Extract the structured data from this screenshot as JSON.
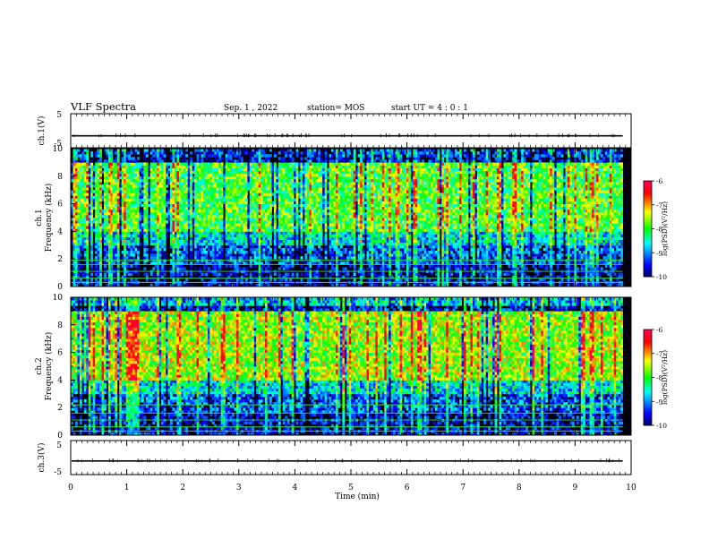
{
  "header": {
    "title": "VLF Spectra",
    "date": "Sep. 1 , 2022",
    "station": "station= MOS",
    "start_ut": "start UT = 4 : 0 : 1"
  },
  "chart_data": [
    {
      "type": "line",
      "id": "ch1-voltage",
      "ylabel": "ch.1(V)",
      "ylim": [
        -5,
        5
      ],
      "yticks": [
        5,
        -5
      ],
      "xlim": [
        0,
        10
      ],
      "baseline_volts": -1.5,
      "data_end_min": 9.85
    },
    {
      "type": "heatmap",
      "id": "ch1-spectrogram",
      "ylabel": "ch.1\nFrequency (kHz)",
      "ylabel_lines": [
        "ch.1",
        "Frequency (kHz)"
      ],
      "ylim": [
        0,
        10
      ],
      "yticks": [
        0,
        2,
        4,
        6,
        8,
        10
      ],
      "xlim": [
        0,
        10
      ],
      "data_end_min": 9.85,
      "peak_band_khz": [
        4,
        9
      ],
      "narrowband_lines_khz": [
        0.3,
        0.6,
        1.1,
        1.6,
        1.9
      ],
      "colorbar": {
        "label": "log(PSD)(V²/Hz)",
        "ticks": [
          -6,
          -7,
          -8,
          -9,
          -10
        ],
        "range": [
          -10,
          -6
        ]
      }
    },
    {
      "type": "heatmap",
      "id": "ch2-spectrogram",
      "ylabel": "ch.2\nFrequency (kHz)",
      "ylabel_lines": [
        "ch.2",
        "Frequency (kHz)"
      ],
      "ylim": [
        0,
        10
      ],
      "yticks": [
        0,
        2,
        4,
        6,
        8,
        10
      ],
      "xlim": [
        0,
        10
      ],
      "data_end_min": 9.85,
      "peak_band_khz": [
        4,
        9
      ],
      "narrowband_lines_khz": [
        0.3,
        0.6,
        1.1,
        1.6,
        2.2
      ],
      "colorbar": {
        "label": "log(PSD)(V²/Hz)",
        "ticks": [
          -6,
          -7,
          -8,
          -9,
          -10
        ],
        "range": [
          -10,
          -6
        ]
      }
    },
    {
      "type": "line",
      "id": "ch3-voltage",
      "ylabel": "ch.3(V)",
      "ylim": [
        -5,
        5
      ],
      "yticks": [
        5,
        -5
      ],
      "xlim": [
        0,
        10
      ],
      "baseline_volts": -1.0,
      "data_end_min": 9.85,
      "xlabel": "Time (min)",
      "xticks": [
        0,
        1,
        2,
        3,
        4,
        5,
        6,
        7,
        8,
        9,
        10
      ]
    }
  ]
}
